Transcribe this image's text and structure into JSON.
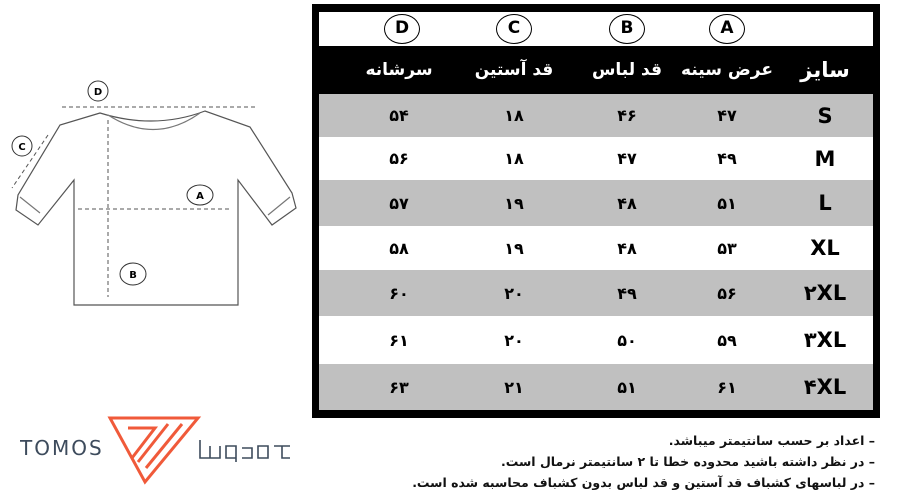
{
  "colors": {
    "header_bg": "#000000",
    "row_gray": "#c0c0c0",
    "row_white": "#ffffff",
    "logo_orange": "#f05a3a",
    "logo_text": "#3d4b5c"
  },
  "diagram": {
    "labels": [
      "A",
      "B",
      "C",
      "D"
    ]
  },
  "table": {
    "letters": [
      "D",
      "C",
      "B",
      "A"
    ],
    "headers": [
      "سرشانه",
      "قد آستین",
      "قد لباس",
      "عرض سینه",
      "سایز"
    ],
    "rows": [
      {
        "shoulder": "۵۴",
        "sleeve": "۱۸",
        "length": "۴۶",
        "chest": "۴۷",
        "size": "S"
      },
      {
        "shoulder": "۵۶",
        "sleeve": "۱۸",
        "length": "۴۷",
        "chest": "۴۹",
        "size": "M"
      },
      {
        "shoulder": "۵۷",
        "sleeve": "۱۹",
        "length": "۴۸",
        "chest": "۵۱",
        "size": "L"
      },
      {
        "shoulder": "۵۸",
        "sleeve": "۱۹",
        "length": "۴۸",
        "chest": "۵۳",
        "size": "XL"
      },
      {
        "shoulder": "۶۰",
        "sleeve": "۲۰",
        "length": "۴۹",
        "chest": "۵۶",
        "size": "۲XL"
      },
      {
        "shoulder": "۶۱",
        "sleeve": "۲۰",
        "length": "۵۰",
        "chest": "۵۹",
        "size": "۳XL"
      },
      {
        "shoulder": "۶۳",
        "sleeve": "۲۱",
        "length": "۵۱",
        "chest": "۶۱",
        "size": "۴XL"
      }
    ]
  },
  "notes": [
    "– اعداد بر حسب سانتیمتر میباشد.",
    "– در نظر داشته باشید محدوده خطا تا ۲ سانتیمتر نرمال است.",
    "– در لباسهای کشباف قد آستین و قد لباس بدون کشباف محاسبه شده است."
  ],
  "logo": {
    "latin": "TOMOS",
    "persian": "تومس"
  }
}
